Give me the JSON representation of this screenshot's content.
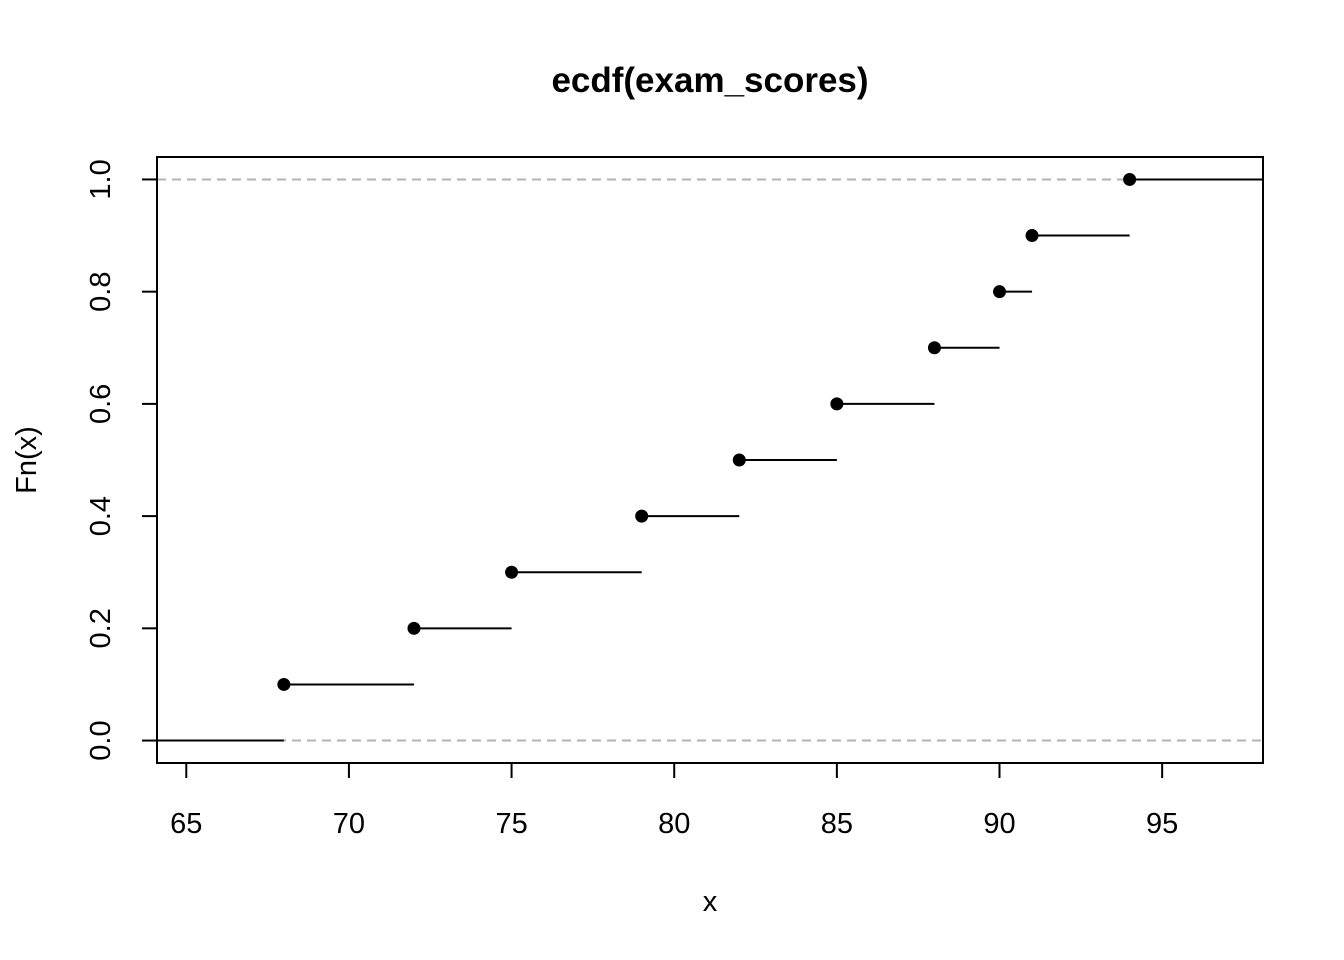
{
  "chart_data": {
    "type": "step",
    "title": "ecdf(exam_scores)",
    "xlabel": "x",
    "ylabel": "Fn(x)",
    "xlim": [
      64.1,
      98.1
    ],
    "ylim": [
      -0.04,
      1.04
    ],
    "xticks": [
      65,
      70,
      75,
      80,
      85,
      90,
      95
    ],
    "yticks": [
      0.0,
      0.2,
      0.4,
      0.6,
      0.8,
      1.0
    ],
    "ytick_labels": [
      "0.0",
      "0.2",
      "0.4",
      "0.6",
      "0.8",
      "1.0"
    ],
    "reference_lines_y": [
      0,
      1
    ],
    "grid": false,
    "legend": "none",
    "points": [
      {
        "x": 68,
        "y": 0.1
      },
      {
        "x": 72,
        "y": 0.2
      },
      {
        "x": 75,
        "y": 0.3
      },
      {
        "x": 79,
        "y": 0.4
      },
      {
        "x": 82,
        "y": 0.5
      },
      {
        "x": 85,
        "y": 0.6
      },
      {
        "x": 88,
        "y": 0.7
      },
      {
        "x": 90,
        "y": 0.8
      },
      {
        "x": 91,
        "y": 0.9
      },
      {
        "x": 94,
        "y": 1.0
      }
    ]
  }
}
